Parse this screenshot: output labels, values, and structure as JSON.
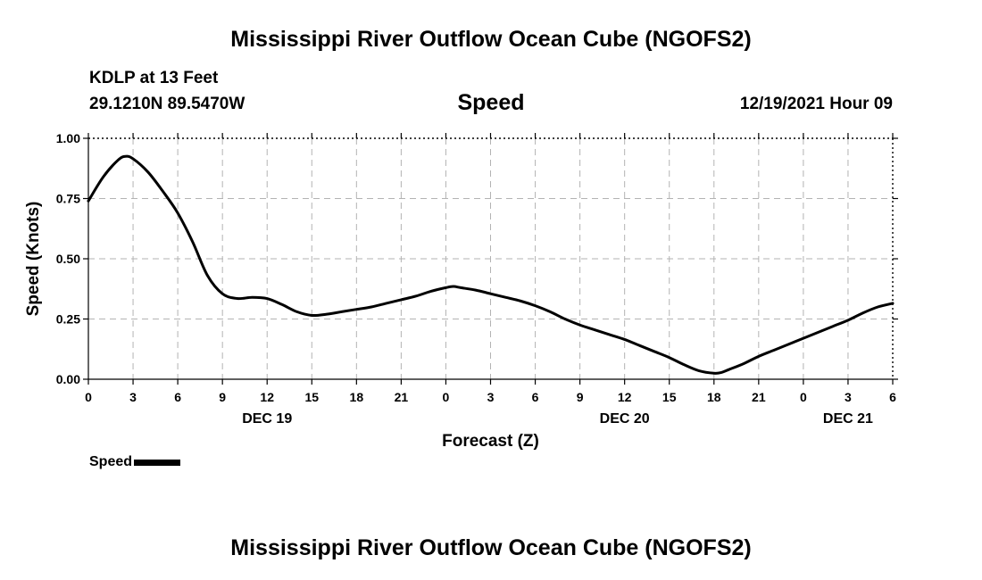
{
  "header": {
    "title": "Mississippi River Outflow Ocean Cube (NGOFS2)",
    "station": "KDLP at 13 Feet",
    "coords": "29.1210N  89.5470W",
    "run_time": "12/19/2021 Hour 09"
  },
  "footer": {
    "title": "Mississippi River Outflow Ocean Cube (NGOFS2)"
  },
  "legend": {
    "label": "Speed",
    "color": "#000000"
  },
  "chart_data": {
    "type": "line",
    "title": "Speed",
    "xlabel": "Forecast (Z)",
    "ylabel": "Speed (Knots)",
    "xlim": [
      0,
      54
    ],
    "ylim": [
      0,
      1
    ],
    "x_tick_values": [
      0,
      3,
      6,
      9,
      12,
      15,
      18,
      21,
      24,
      27,
      30,
      33,
      36,
      39,
      42,
      45,
      48,
      51,
      54
    ],
    "x_tick_labels": [
      "0",
      "3",
      "6",
      "9",
      "12",
      "15",
      "18",
      "21",
      "0",
      "3",
      "6",
      "9",
      "12",
      "15",
      "18",
      "21",
      "0",
      "3",
      "6"
    ],
    "y_tick_values": [
      0,
      0.25,
      0.5,
      0.75,
      1.0
    ],
    "y_tick_labels": [
      "0.00",
      "0.25",
      "0.50",
      "0.75",
      "1.00"
    ],
    "date_labels": [
      {
        "x": 12,
        "label": "DEC 19"
      },
      {
        "x": 36,
        "label": "DEC 20"
      },
      {
        "x": 51,
        "label": "DEC 21"
      }
    ],
    "grid": true,
    "series": [
      {
        "name": "Speed",
        "color": "#000000",
        "x": [
          0,
          1,
          2,
          2.5,
          3,
          4,
          5,
          6,
          7,
          8,
          9,
          10,
          11,
          12,
          13,
          14,
          15,
          16,
          17,
          18,
          19,
          20,
          21,
          22,
          23,
          24,
          24.5,
          25,
          26,
          27,
          28,
          29,
          30,
          31,
          32,
          33,
          34,
          35,
          36,
          37,
          38,
          39,
          40,
          41,
          42,
          42.5,
          43,
          44,
          45,
          46,
          47,
          48,
          49,
          50,
          51,
          52,
          53,
          54
        ],
        "values": [
          0.74,
          0.84,
          0.91,
          0.925,
          0.915,
          0.86,
          0.78,
          0.69,
          0.57,
          0.43,
          0.355,
          0.335,
          0.34,
          0.335,
          0.31,
          0.28,
          0.265,
          0.27,
          0.28,
          0.29,
          0.3,
          0.315,
          0.33,
          0.345,
          0.365,
          0.38,
          0.385,
          0.38,
          0.37,
          0.355,
          0.34,
          0.325,
          0.305,
          0.28,
          0.25,
          0.225,
          0.205,
          0.185,
          0.165,
          0.14,
          0.115,
          0.09,
          0.06,
          0.035,
          0.025,
          0.028,
          0.04,
          0.065,
          0.095,
          0.12,
          0.145,
          0.17,
          0.195,
          0.22,
          0.245,
          0.275,
          0.3,
          0.315
        ]
      }
    ]
  }
}
